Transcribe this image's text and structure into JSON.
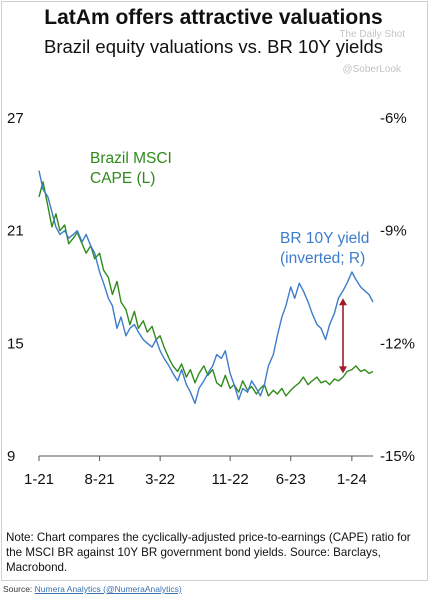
{
  "header": {
    "title": "LatAm offers attractive valuations",
    "subtitle": "Brazil equity valuations vs. BR 10Y yields",
    "watermark_1": "The Daily Shot",
    "watermark_2": "@SoberLook"
  },
  "footer": {
    "note": "Note: Chart compares the cyclically-adjusted price-to-earnings (CAPE) ratio for the MSCI BR against 10Y BR government bond yields. Source: Barclays, Macrobond.",
    "source_prefix": "Source: ",
    "source_link": "Numera Analytics (@NumeraAnalytics)"
  },
  "colors": {
    "cape": "#2e8b1a",
    "yield": "#3d7cc9",
    "arrow": "#a01b2a",
    "axis": "#555555"
  },
  "chart_data": {
    "type": "line",
    "x_ticks": [
      "1-21",
      "8-21",
      "3-22",
      "11-22",
      "6-23",
      "1-24"
    ],
    "left_ticks": [
      "27",
      "21",
      "15",
      "9"
    ],
    "right_ticks": [
      "-6%",
      "-9%",
      "-12%",
      "-15%"
    ],
    "ylim_left": [
      9,
      27
    ],
    "ylim_right": [
      -15,
      -6
    ],
    "series": [
      {
        "name": "Brazil MSCI\nCAPE (L)",
        "axis": "left",
        "x": [
          "2021-01-01",
          "2021-01-15",
          "2021-02-01",
          "2021-02-15",
          "2021-03-01",
          "2021-03-15",
          "2021-04-01",
          "2021-04-15",
          "2021-05-01",
          "2021-05-15",
          "2021-06-01",
          "2021-06-15",
          "2021-07-01",
          "2021-07-15",
          "2021-08-01",
          "2021-08-15",
          "2021-09-01",
          "2021-09-15",
          "2021-10-01",
          "2021-10-15",
          "2021-11-01",
          "2021-11-15",
          "2021-12-01",
          "2021-12-15",
          "2022-01-01",
          "2022-01-15",
          "2022-02-01",
          "2022-02-15",
          "2022-03-01",
          "2022-03-15",
          "2022-04-01",
          "2022-04-15",
          "2022-05-01",
          "2022-05-15",
          "2022-06-01",
          "2022-06-15",
          "2022-07-01",
          "2022-07-15",
          "2022-08-01",
          "2022-08-15",
          "2022-09-01",
          "2022-09-15",
          "2022-10-01",
          "2022-10-15",
          "2022-11-01",
          "2022-11-15",
          "2022-12-01",
          "2022-12-15",
          "2023-01-01",
          "2023-01-15",
          "2023-02-01",
          "2023-02-15",
          "2023-03-01",
          "2023-03-15",
          "2023-04-01",
          "2023-04-15",
          "2023-05-01",
          "2023-05-15",
          "2023-06-01",
          "2023-06-15",
          "2023-07-01",
          "2023-07-15",
          "2023-08-01",
          "2023-08-15",
          "2023-09-01",
          "2023-09-15",
          "2023-10-01",
          "2023-10-15",
          "2023-11-01",
          "2023-11-15",
          "2023-12-01",
          "2023-12-15",
          "2024-01-01",
          "2024-01-15",
          "2024-02-01",
          "2024-02-15",
          "2024-03-01",
          "2024-03-15"
        ],
        "y": [
          22.8,
          23.6,
          22.3,
          21.2,
          21.9,
          21.0,
          21.3,
          20.3,
          20.6,
          20.9,
          20.3,
          19.8,
          20.2,
          19.5,
          19.8,
          18.9,
          18.5,
          17.6,
          18.3,
          17.2,
          16.8,
          16.0,
          16.7,
          15.8,
          16.2,
          15.6,
          15.9,
          15.2,
          15.4,
          14.8,
          14.2,
          13.8,
          13.5,
          13.9,
          13.2,
          13.6,
          12.9,
          13.4,
          13.8,
          13.3,
          13.6,
          12.9,
          12.7,
          13.3,
          12.6,
          12.8,
          12.4,
          13.0,
          12.5,
          12.7,
          12.3,
          12.6,
          12.8,
          12.2,
          12.5,
          12.3,
          12.6,
          12.2,
          12.5,
          12.7,
          12.9,
          13.2,
          12.8,
          13.0,
          13.2,
          12.9,
          13.0,
          12.8,
          13.1,
          13.0,
          13.2,
          13.5,
          13.6,
          13.8,
          13.5,
          13.6,
          13.4,
          13.5
        ]
      },
      {
        "name": "BR 10Y yield\n(inverted; R)",
        "axis": "right",
        "x": [
          "2021-01-01",
          "2021-01-15",
          "2021-02-01",
          "2021-02-15",
          "2021-03-01",
          "2021-03-15",
          "2021-04-01",
          "2021-04-15",
          "2021-05-01",
          "2021-05-15",
          "2021-06-01",
          "2021-06-15",
          "2021-07-01",
          "2021-07-15",
          "2021-08-01",
          "2021-08-15",
          "2021-09-01",
          "2021-09-15",
          "2021-10-01",
          "2021-10-15",
          "2021-11-01",
          "2021-11-15",
          "2021-12-01",
          "2021-12-15",
          "2022-01-01",
          "2022-01-15",
          "2022-02-01",
          "2022-02-15",
          "2022-03-01",
          "2022-03-15",
          "2022-04-01",
          "2022-04-15",
          "2022-05-01",
          "2022-05-15",
          "2022-06-01",
          "2022-06-15",
          "2022-07-01",
          "2022-07-15",
          "2022-08-01",
          "2022-08-15",
          "2022-09-01",
          "2022-09-15",
          "2022-10-01",
          "2022-10-15",
          "2022-11-01",
          "2022-11-15",
          "2022-12-01",
          "2022-12-15",
          "2023-01-01",
          "2023-01-15",
          "2023-02-01",
          "2023-02-15",
          "2023-03-01",
          "2023-03-15",
          "2023-04-01",
          "2023-04-15",
          "2023-05-01",
          "2023-05-15",
          "2023-06-01",
          "2023-06-15",
          "2023-07-01",
          "2023-07-15",
          "2023-08-01",
          "2023-08-15",
          "2023-09-01",
          "2023-09-15",
          "2023-10-01",
          "2023-10-15",
          "2023-11-01",
          "2023-11-15",
          "2023-12-01",
          "2023-12-15",
          "2024-01-01",
          "2024-01-15",
          "2024-02-01",
          "2024-02-15",
          "2024-03-01",
          "2024-03-15"
        ],
        "y": [
          -7.4,
          -7.9,
          -8.1,
          -8.5,
          -8.9,
          -9.1,
          -9.0,
          -9.2,
          -9.1,
          -9.0,
          -9.3,
          -9.1,
          -9.4,
          -9.6,
          -10.1,
          -10.4,
          -10.8,
          -11.0,
          -11.6,
          -11.3,
          -11.8,
          -11.6,
          -11.5,
          -11.7,
          -11.9,
          -12.0,
          -12.1,
          -11.9,
          -12.2,
          -12.4,
          -12.6,
          -12.8,
          -13.0,
          -12.7,
          -13.1,
          -13.3,
          -13.6,
          -13.2,
          -13.0,
          -12.8,
          -12.6,
          -12.3,
          -12.4,
          -12.2,
          -12.8,
          -13.1,
          -13.5,
          -13.2,
          -13.3,
          -13.0,
          -13.2,
          -13.4,
          -13.1,
          -12.6,
          -12.3,
          -11.8,
          -11.3,
          -11.0,
          -10.5,
          -10.8,
          -10.4,
          -10.6,
          -10.9,
          -11.2,
          -11.5,
          -11.6,
          -11.9,
          -11.5,
          -11.2,
          -10.8,
          -10.6,
          -10.4,
          -10.1,
          -10.3,
          -10.5,
          -10.6,
          -10.7,
          -10.9
        ]
      }
    ],
    "annotations": [
      {
        "type": "double-arrow",
        "x": "2023-12-01",
        "from_left": 13.4,
        "to_left": 17.4
      }
    ]
  }
}
